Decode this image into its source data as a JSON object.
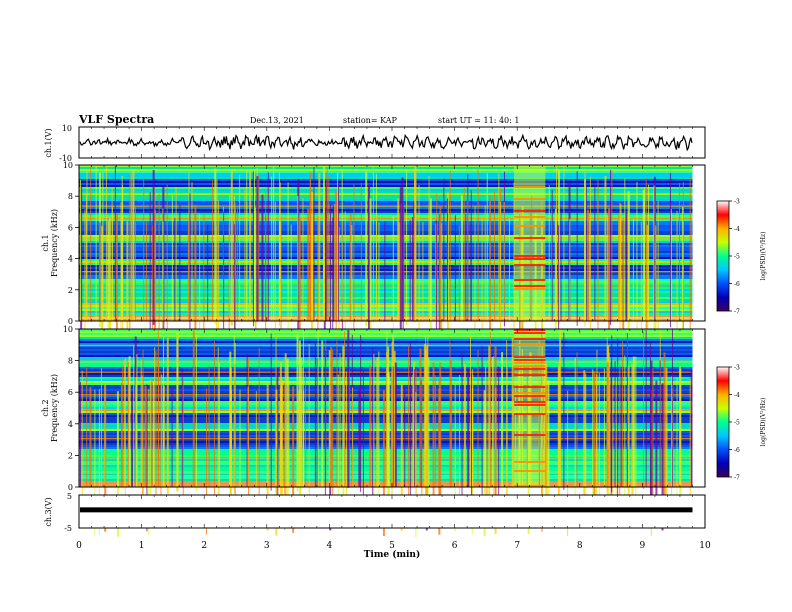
{
  "header": {
    "title": "VLF Spectra",
    "date": "Dec.13, 2021",
    "station": "station= KAP",
    "start": "start  UT =   11: 40: 1"
  },
  "colors": {
    "spectrogram_ramp": [
      "#3a0060",
      "#0000b4",
      "#0050ff",
      "#00c8ff",
      "#00ff90",
      "#c8ff00",
      "#ffb000",
      "#ff0000",
      "#ffffff"
    ],
    "trace": "#000000"
  },
  "chart_data": [
    {
      "type": "line",
      "name": "ch1-waveform",
      "ylabel": "ch.1(V)",
      "ylim": [
        -10,
        10
      ],
      "yticks": [
        "10",
        "-10"
      ],
      "x_range_min": [
        0,
        10
      ],
      "description_hidden": true
    },
    {
      "type": "heatmap",
      "name": "ch1-spectrogram",
      "ylabel_channel": "ch.1",
      "ylabel": "Frequency (kHz)",
      "ylim": [
        0,
        10
      ],
      "yticks": [
        "0",
        "2",
        "4",
        "6",
        "8",
        "10"
      ],
      "colorbar": {
        "label": "log(PSD)(V²/Hz)",
        "range": [
          -7,
          -3
        ],
        "ticks": [
          "-3",
          "-4",
          "-5",
          "-6",
          "-7"
        ]
      },
      "burst_interval_min": [
        6.95,
        7.45
      ]
    },
    {
      "type": "heatmap",
      "name": "ch2-spectrogram",
      "ylabel_channel": "ch.2",
      "ylabel": "Frequency (kHz)",
      "ylim": [
        0,
        10
      ],
      "yticks": [
        "0",
        "2",
        "4",
        "6",
        "8",
        "10"
      ],
      "colorbar": {
        "label": "log(PSD)(V²/Hz)",
        "range": [
          -7,
          -3
        ],
        "ticks": [
          "-3",
          "-4",
          "-5",
          "-6",
          "-7"
        ]
      },
      "burst_interval_min": [
        6.95,
        7.45
      ]
    },
    {
      "type": "line",
      "name": "ch3-waveform",
      "ylabel": "ch.3(V)",
      "ylim": [
        -5,
        5
      ],
      "yticks": [
        "5",
        "-5"
      ],
      "xlabel": "Time (min)",
      "xlim": [
        0,
        10
      ],
      "xticks": [
        "0",
        "1",
        "2",
        "3",
        "4",
        "5",
        "6",
        "7",
        "8",
        "9",
        "10"
      ],
      "level_v": 0.5,
      "data_end_min": 9.8
    }
  ]
}
